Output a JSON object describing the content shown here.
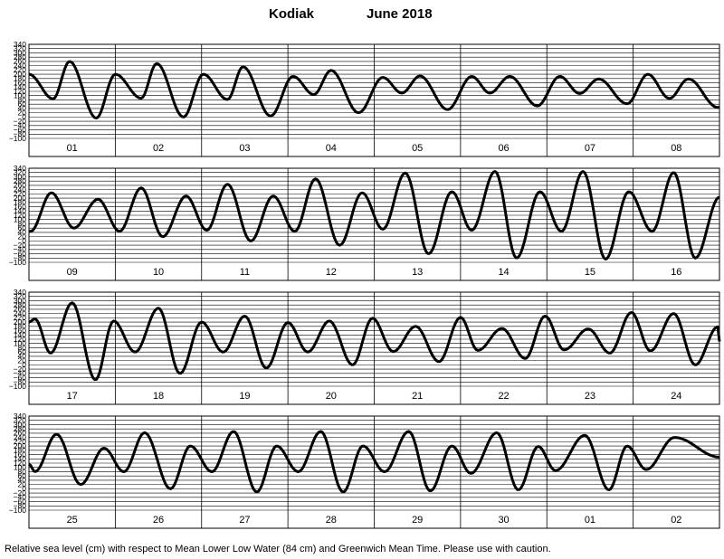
{
  "title": {
    "station": "Kodiak",
    "month_year": "June   2018"
  },
  "footnote": "Relative sea level (cm) with respect to Mean Lower Low Water (84 cm) and Greenwich Mean Time. Please use with caution.",
  "chart_data": {
    "type": "line",
    "title": "Kodiak          June   2018",
    "xlabel": "",
    "ylabel": "",
    "ylim": [
      -100,
      340
    ],
    "yticks": [
      340,
      320,
      300,
      280,
      260,
      240,
      220,
      200,
      180,
      160,
      140,
      120,
      100,
      80,
      60,
      40,
      20,
      0,
      -20,
      -40,
      -60,
      -80,
      -100
    ],
    "grid": true,
    "line_color": "#000000",
    "panels": [
      {
        "days": [
          "01",
          "02",
          "03",
          "04",
          "05",
          "06",
          "07",
          "08"
        ],
        "x": [
          0,
          0.5,
          1,
          1.5,
          2,
          2.5,
          3,
          3.5,
          4,
          4.5,
          5,
          5.5,
          6,
          6.5,
          7,
          7.5,
          8
        ],
        "extremes_t": [
          0.28,
          0.47,
          0.78,
          1.0,
          1.3,
          1.48,
          1.79,
          2.02,
          2.3,
          2.48,
          2.8,
          3.06,
          3.3,
          3.5,
          3.82,
          4.1,
          4.32,
          4.53,
          4.85,
          5.13,
          5.34,
          5.57,
          5.89,
          6.15,
          6.38,
          6.6,
          6.93,
          7.17,
          7.42,
          7.64,
          7.98
        ],
        "extremes_y": [
          85,
          260,
          -5,
          200,
          88,
          250,
          0,
          200,
          82,
          235,
          5,
          190,
          105,
          218,
          20,
          185,
          112,
          192,
          35,
          190,
          112,
          190,
          52,
          190,
          110,
          178,
          62,
          200,
          87,
          178,
          45
        ],
        "start_y": 200,
        "end_y": 45
      },
      {
        "days": [
          "09",
          "10",
          "11",
          "12",
          "13",
          "14",
          "15",
          "16"
        ],
        "x": [
          0,
          0.5,
          1,
          1.5,
          2,
          2.5,
          3,
          3.5,
          4,
          4.5,
          5,
          5.5,
          6,
          6.5,
          7,
          7.5,
          8
        ],
        "extremes_t": [
          0.02,
          0.26,
          0.52,
          0.8,
          1.05,
          1.3,
          1.55,
          1.82,
          2.06,
          2.3,
          2.57,
          2.83,
          3.08,
          3.32,
          3.6,
          3.86,
          4.1,
          4.36,
          4.63,
          4.9,
          5.13,
          5.4,
          5.65,
          5.92,
          6.17,
          6.42,
          6.68,
          6.95,
          7.22,
          7.47,
          7.72
        ],
        "extremes_y": [
          45,
          225,
          60,
          195,
          45,
          248,
          20,
          210,
          50,
          265,
          0,
          210,
          45,
          290,
          -20,
          225,
          55,
          318,
          -60,
          230,
          50,
          325,
          -80,
          230,
          45,
          325,
          -85,
          230,
          45,
          320,
          -80
        ],
        "start_y": 45,
        "end_y": 205
      },
      {
        "days": [
          "17",
          "18",
          "19",
          "20",
          "21",
          "22",
          "23",
          "24"
        ],
        "x": [
          0,
          0.5,
          1,
          1.5,
          2,
          2.5,
          3,
          3.5,
          4,
          4.5,
          5,
          5.5,
          6,
          6.5,
          7,
          7.5,
          8
        ],
        "extremes_t": [
          0.07,
          0.25,
          0.5,
          0.77,
          0.98,
          1.23,
          1.5,
          1.75,
          2.0,
          2.25,
          2.5,
          2.75,
          3.0,
          3.23,
          3.48,
          3.75,
          3.98,
          4.22,
          4.48,
          4.75,
          5.0,
          5.2,
          5.48,
          5.75,
          5.98,
          6.2,
          6.48,
          6.73,
          6.98,
          7.2,
          7.47,
          7.72,
          7.98
        ],
        "extremes_y": [
          215,
          55,
          290,
          -70,
          205,
          60,
          265,
          -40,
          200,
          60,
          228,
          -15,
          198,
          60,
          205,
          0,
          218,
          62,
          180,
          15,
          222,
          68,
          170,
          30,
          228,
          70,
          168,
          55,
          245,
          65,
          240,
          0,
          178
        ],
        "start_y": 200,
        "end_y": 110
      },
      {
        "days": [
          "25",
          "26",
          "27",
          "28",
          "29",
          "30",
          "01",
          "02"
        ],
        "x": [
          0,
          0.5,
          1,
          1.5,
          2,
          2.5,
          3,
          3.5,
          4,
          4.5,
          5,
          5.5,
          6,
          6.5,
          7,
          7.5,
          8
        ],
        "extremes_t": [
          0.07,
          0.32,
          0.6,
          0.87,
          1.1,
          1.34,
          1.64,
          1.87,
          2.12,
          2.37,
          2.64,
          2.87,
          3.12,
          3.38,
          3.64,
          3.87,
          4.12,
          4.4,
          4.65,
          4.9,
          5.12,
          5.42,
          5.67,
          5.9,
          6.1,
          6.44,
          6.72,
          6.93,
          7.15,
          7.48
        ],
        "extremes_y": [
          80,
          255,
          20,
          190,
          80,
          262,
          0,
          200,
          80,
          268,
          -15,
          200,
          80,
          268,
          -15,
          200,
          80,
          268,
          -10,
          200,
          72,
          262,
          -5,
          198,
          85,
          250,
          -5,
          200,
          90,
          240
        ],
        "start_y": 115,
        "end_y": 148
      }
    ]
  }
}
